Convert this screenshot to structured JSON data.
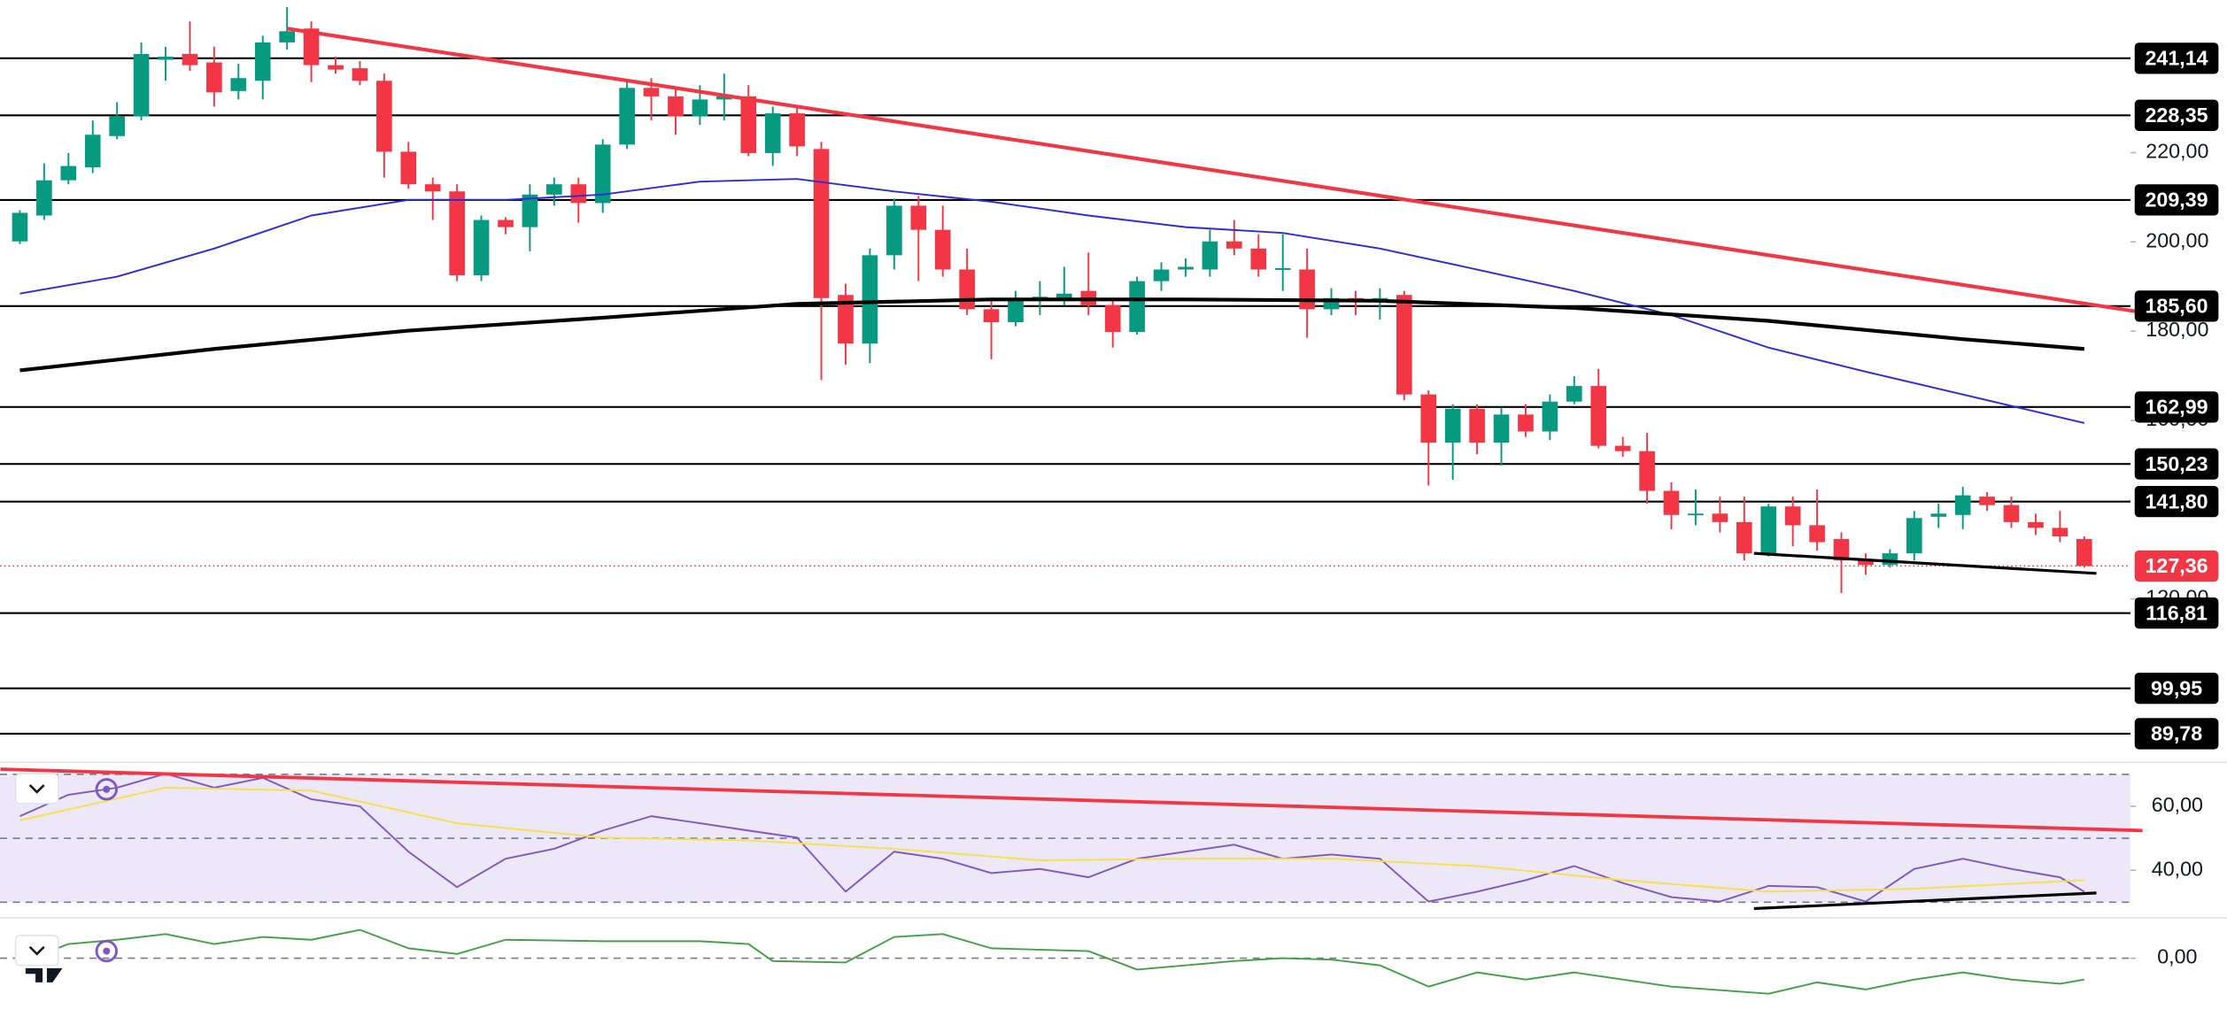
{
  "chart_data": [
    {
      "type": "candlestick",
      "up_color": "#089981",
      "down_color": "#f23645",
      "open": [
        200.1,
        205.9,
        213.8,
        216.7,
        223.7,
        228.1,
        240.8,
        242.1,
        240.2,
        233.8,
        236.1,
        244.7,
        247.8,
        239.6,
        238.9,
        236.1,
        220.2,
        212.9,
        211.3,
        192.5,
        204.9,
        203.3,
        210.6,
        212.9,
        208.7,
        221.8,
        234.5,
        232.6,
        228.1,
        231.9,
        232.6,
        219.9,
        228.8,
        220.8,
        188.1,
        177.2,
        197.0,
        208.1,
        202.7,
        193.8,
        184.9,
        182.0,
        186.8,
        187.4,
        189.0,
        185.8,
        179.8,
        191.2,
        193.8,
        193.8,
        200.1,
        198.5,
        193.8,
        193.8,
        184.9,
        187.4,
        186.5,
        188.1,
        165.8,
        155.0,
        162.6,
        155.0,
        161.3,
        157.5,
        164.2,
        167.7,
        154.3,
        153.1,
        144.2,
        138.8,
        139.1,
        137.2,
        130.2,
        140.7,
        136.5,
        133.4,
        128.6,
        127.6,
        130.2,
        138.4,
        138.8,
        142.9,
        141.0,
        137.2,
        135.9,
        133.4
      ],
      "high": [
        207.1,
        217.6,
        219.9,
        227.2,
        231.3,
        244.7,
        243.7,
        249.4,
        243.7,
        239.9,
        246.2,
        252.6,
        249.4,
        241.5,
        240.5,
        237.7,
        222.4,
        214.4,
        212.9,
        205.9,
        205.5,
        212.9,
        214.4,
        214.4,
        223.0,
        235.8,
        236.7,
        234.5,
        235.1,
        237.7,
        235.1,
        230.3,
        230.3,
        222.4,
        190.6,
        198.5,
        209.7,
        210.3,
        208.1,
        198.5,
        187.4,
        189.0,
        191.2,
        194.4,
        197.6,
        187.4,
        192.2,
        195.4,
        196.3,
        202.7,
        204.9,
        201.7,
        201.7,
        198.5,
        189.6,
        189.0,
        189.6,
        189.0,
        166.7,
        163.6,
        163.6,
        162.9,
        163.6,
        165.8,
        169.9,
        171.5,
        156.3,
        157.2,
        146.1,
        144.5,
        142.9,
        142.9,
        141.3,
        142.9,
        144.5,
        134.9,
        130.2,
        131.1,
        139.7,
        141.3,
        145.1,
        143.9,
        142.9,
        139.1,
        139.7,
        134.0
      ],
      "low": [
        199.5,
        204.9,
        212.9,
        215.4,
        223.0,
        227.2,
        236.1,
        238.3,
        230.3,
        231.9,
        231.9,
        243.1,
        235.8,
        237.7,
        235.1,
        214.4,
        211.9,
        204.9,
        191.2,
        191.2,
        201.7,
        197.9,
        208.1,
        204.3,
        206.5,
        220.8,
        227.2,
        224.0,
        226.2,
        227.2,
        219.2,
        217.0,
        219.2,
        169.0,
        172.5,
        172.8,
        193.8,
        191.2,
        192.2,
        183.6,
        173.7,
        181.1,
        183.6,
        185.8,
        183.6,
        176.3,
        179.2,
        189.0,
        192.2,
        192.2,
        197.0,
        192.2,
        189.0,
        178.5,
        183.6,
        183.6,
        182.6,
        164.5,
        145.4,
        146.7,
        152.4,
        149.9,
        156.3,
        155.6,
        163.6,
        153.7,
        151.8,
        141.3,
        135.6,
        136.5,
        134.9,
        128.6,
        129.5,
        131.8,
        130.8,
        121.3,
        125.4,
        127.0,
        128.6,
        135.9,
        135.6,
        139.7,
        135.9,
        134.3,
        132.7,
        127.0
      ],
      "close": [
        206.5,
        213.8,
        217.0,
        224.0,
        228.1,
        242.1,
        241.5,
        239.6,
        233.5,
        236.7,
        244.7,
        247.2,
        239.6,
        238.6,
        236.1,
        220.2,
        212.9,
        211.3,
        192.5,
        204.9,
        203.3,
        210.6,
        212.9,
        208.7,
        221.8,
        234.5,
        232.6,
        228.1,
        231.9,
        232.6,
        219.9,
        228.8,
        221.4,
        187.4,
        177.2,
        197.0,
        208.1,
        202.7,
        193.8,
        184.9,
        182.0,
        187.4,
        187.7,
        188.4,
        185.8,
        179.8,
        191.2,
        193.8,
        194.4,
        200.1,
        198.5,
        193.8,
        194.1,
        184.9,
        187.4,
        186.5,
        187.4,
        165.8,
        155.0,
        162.6,
        155.0,
        161.3,
        157.5,
        164.2,
        167.7,
        154.3,
        153.1,
        144.2,
        138.8,
        139.1,
        137.2,
        130.2,
        140.7,
        136.5,
        132.7,
        128.6,
        127.6,
        130.2,
        138.1,
        139.1,
        143.2,
        141.0,
        137.2,
        135.9,
        134.0,
        127.36
      ],
      "ylim": [
        84,
        254.2
      ],
      "yticks": [
        {
          "value": 220,
          "label": "220,00"
        },
        {
          "value": 200,
          "label": "200,00"
        },
        {
          "value": 180,
          "label": "180,00"
        },
        {
          "value": 160,
          "label": "160,00"
        },
        {
          "value": 120,
          "label": "120,00"
        }
      ],
      "levels": [
        {
          "value": 241.14,
          "label": "241,14"
        },
        {
          "value": 228.35,
          "label": "228,35"
        },
        {
          "value": 209.39,
          "label": "209,39"
        },
        {
          "value": 185.6,
          "label": "185,60"
        },
        {
          "value": 162.99,
          "label": "162,99"
        },
        {
          "value": 150.23,
          "label": "150,23"
        },
        {
          "value": 141.8,
          "label": "141,80"
        },
        {
          "value": 116.81,
          "label": "116,81"
        },
        {
          "value": 99.95,
          "label": "99,95"
        },
        {
          "value": 89.78,
          "label": "89,78"
        }
      ],
      "current": {
        "value": 127.36,
        "label": "127,36",
        "color": "#f23645"
      },
      "series": [
        {
          "color": "#2b2bd9",
          "width": 1.2,
          "x": [
            0,
            4,
            8,
            12,
            16,
            20,
            24,
            28,
            32,
            36,
            40,
            44,
            48,
            52,
            56,
            60,
            64,
            68,
            72,
            76,
            80,
            85
          ],
          "values": [
            188.4,
            192.2,
            198.5,
            205.9,
            209.4,
            209.4,
            210.6,
            213.5,
            214.1,
            211.3,
            209.0,
            205.9,
            203.3,
            202.0,
            198.5,
            193.8,
            189.0,
            183.6,
            176.3,
            170.9,
            165.8,
            159.4
          ]
        },
        {
          "color": "#000000",
          "width": 2.6,
          "x": [
            0,
            8,
            16,
            24,
            32,
            40,
            48,
            56,
            64,
            72,
            80,
            85
          ],
          "values": [
            171.2,
            176.0,
            180.1,
            183.0,
            186.1,
            187.1,
            187.1,
            186.8,
            185.2,
            182.3,
            178.2,
            176.0
          ]
        },
        {
          "color": "#f23645",
          "width": 2.6,
          "x": [
            11,
            87.4
          ],
          "values": [
            247.8,
            184.2
          ]
        },
        {
          "color": "#000000",
          "width": 2,
          "x": [
            71.4,
            85.5
          ],
          "values": [
            130.2,
            125.7
          ]
        }
      ]
    },
    {
      "type": "line",
      "ylim": [
        25.8,
        73.3
      ],
      "yticks": [
        {
          "value": 60,
          "label": "60,00"
        },
        {
          "value": 40,
          "label": "40,00"
        }
      ],
      "guides": [
        70,
        50,
        30
      ],
      "band_color": "#ede8f7",
      "series": [
        {
          "color": "#7e57c2",
          "width": 1.2,
          "x": [
            0,
            2,
            4,
            6,
            8,
            10,
            12,
            14,
            16,
            18,
            20,
            22,
            24,
            26,
            28,
            30,
            32,
            34,
            36,
            38,
            40,
            42,
            44,
            46,
            48,
            50,
            52,
            54,
            56,
            58,
            60,
            62,
            64,
            66,
            68,
            70,
            72,
            74,
            76,
            78,
            80,
            82,
            84,
            85
          ],
          "values": [
            56.9,
            63.6,
            65.8,
            70.2,
            65.8,
            68.9,
            62.2,
            60,
            45.8,
            34.7,
            43.6,
            46.7,
            52.4,
            56.9,
            54.7,
            52.4,
            50.2,
            33.3,
            45.8,
            43.6,
            39.1,
            40.4,
            37.8,
            43.6,
            45.8,
            48.0,
            43.6,
            44.9,
            43.6,
            30.2,
            33.3,
            36.9,
            41.3,
            36,
            31.6,
            30.2,
            35.1,
            34.7,
            30.2,
            40.4,
            43.6,
            40.4,
            37.8,
            33.3
          ]
        },
        {
          "color": "#f7e04b",
          "width": 1.2,
          "x": [
            0,
            6,
            12,
            18,
            24,
            30,
            36,
            42,
            48,
            54,
            60,
            66,
            72,
            78,
            85
          ],
          "values": [
            55.6,
            65.8,
            64.9,
            54.7,
            50.2,
            49.3,
            46.7,
            43.1,
            43.6,
            43.6,
            41.3,
            36.9,
            33.3,
            34.2,
            36.9
          ]
        },
        {
          "color": "#f23645",
          "width": 2.4,
          "x": [
            -0.8,
            87.4
          ],
          "values": [
            71.6,
            52.4
          ]
        },
        {
          "color": "#000000",
          "width": 2,
          "x": [
            71.4,
            85.5
          ],
          "values": [
            28.0,
            32.9
          ]
        }
      ]
    },
    {
      "type": "line",
      "ylim": [
        -0.33,
        0.27
      ],
      "yticks": [
        {
          "value": 0,
          "label": "0,00"
        }
      ],
      "series": [
        {
          "color": "#43a047",
          "width": 1.2,
          "x": [
            0,
            2,
            4,
            6,
            8,
            10,
            12,
            14,
            16,
            18,
            20,
            24,
            28,
            30,
            31,
            34,
            36,
            38,
            40,
            44,
            46,
            50,
            52,
            54,
            56,
            58,
            60,
            62,
            64,
            66,
            68,
            72,
            74,
            76,
            78,
            80,
            82,
            84,
            85
          ],
          "values": [
            -0.03,
            0.1,
            0.13,
            0.17,
            0.1,
            0.15,
            0.13,
            0.2,
            0.07,
            0.03,
            0.13,
            0.12,
            0.12,
            0.1,
            -0.02,
            -0.03,
            0.15,
            0.17,
            0.07,
            0.05,
            -0.08,
            -0.02,
            0,
            -0.01,
            -0.05,
            -0.2,
            -0.1,
            -0.15,
            -0.1,
            -0.15,
            -0.2,
            -0.25,
            -0.17,
            -0.22,
            -0.15,
            -0.1,
            -0.15,
            -0.18,
            -0.15
          ]
        }
      ]
    }
  ]
}
